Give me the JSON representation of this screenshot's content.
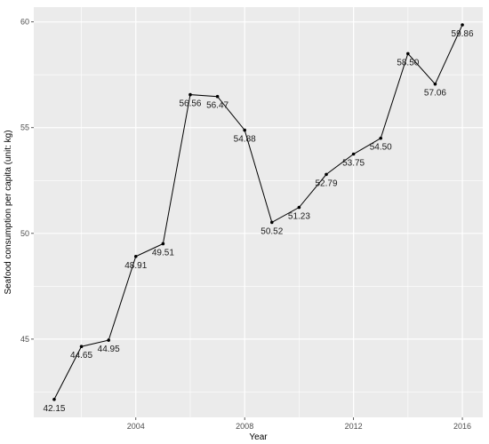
{
  "chart_data": {
    "type": "line",
    "title": "",
    "xlabel": "Year",
    "ylabel": "Seafood consumption per capita (unit: kg)",
    "x": [
      2001,
      2002,
      2003,
      2004,
      2005,
      2006,
      2007,
      2008,
      2009,
      2010,
      2011,
      2012,
      2013,
      2014,
      2015,
      2016
    ],
    "series": [
      {
        "values": [
          42.15,
          44.65,
          44.95,
          48.91,
          49.51,
          56.56,
          56.47,
          54.88,
          50.52,
          51.23,
          52.79,
          53.75,
          54.5,
          58.5,
          57.06,
          59.86
        ],
        "labels": [
          "42.15",
          "44.65",
          "44.95",
          "48.91",
          "49.51",
          "56.56",
          "56.47",
          "54.88",
          "50.52",
          "51.23",
          "52.79",
          "53.75",
          "54.50",
          "58.50",
          "57.06",
          "59.86"
        ]
      }
    ],
    "xticks": [
      2004,
      2008,
      2012,
      2016
    ],
    "xtick_labels": [
      "2004",
      "2008",
      "2012",
      "2016"
    ],
    "yticks": [
      45,
      50,
      55,
      60
    ],
    "ytick_labels": [
      "45",
      "50",
      "55",
      "60"
    ],
    "xlim": [
      2000.25,
      2016.75
    ],
    "ylim": [
      41.3,
      60.7
    ],
    "grid": true,
    "legend": "none",
    "colors": {
      "panel": "#ebebeb",
      "grid": "#ffffff",
      "line": "#000000",
      "point": "#000000"
    }
  }
}
